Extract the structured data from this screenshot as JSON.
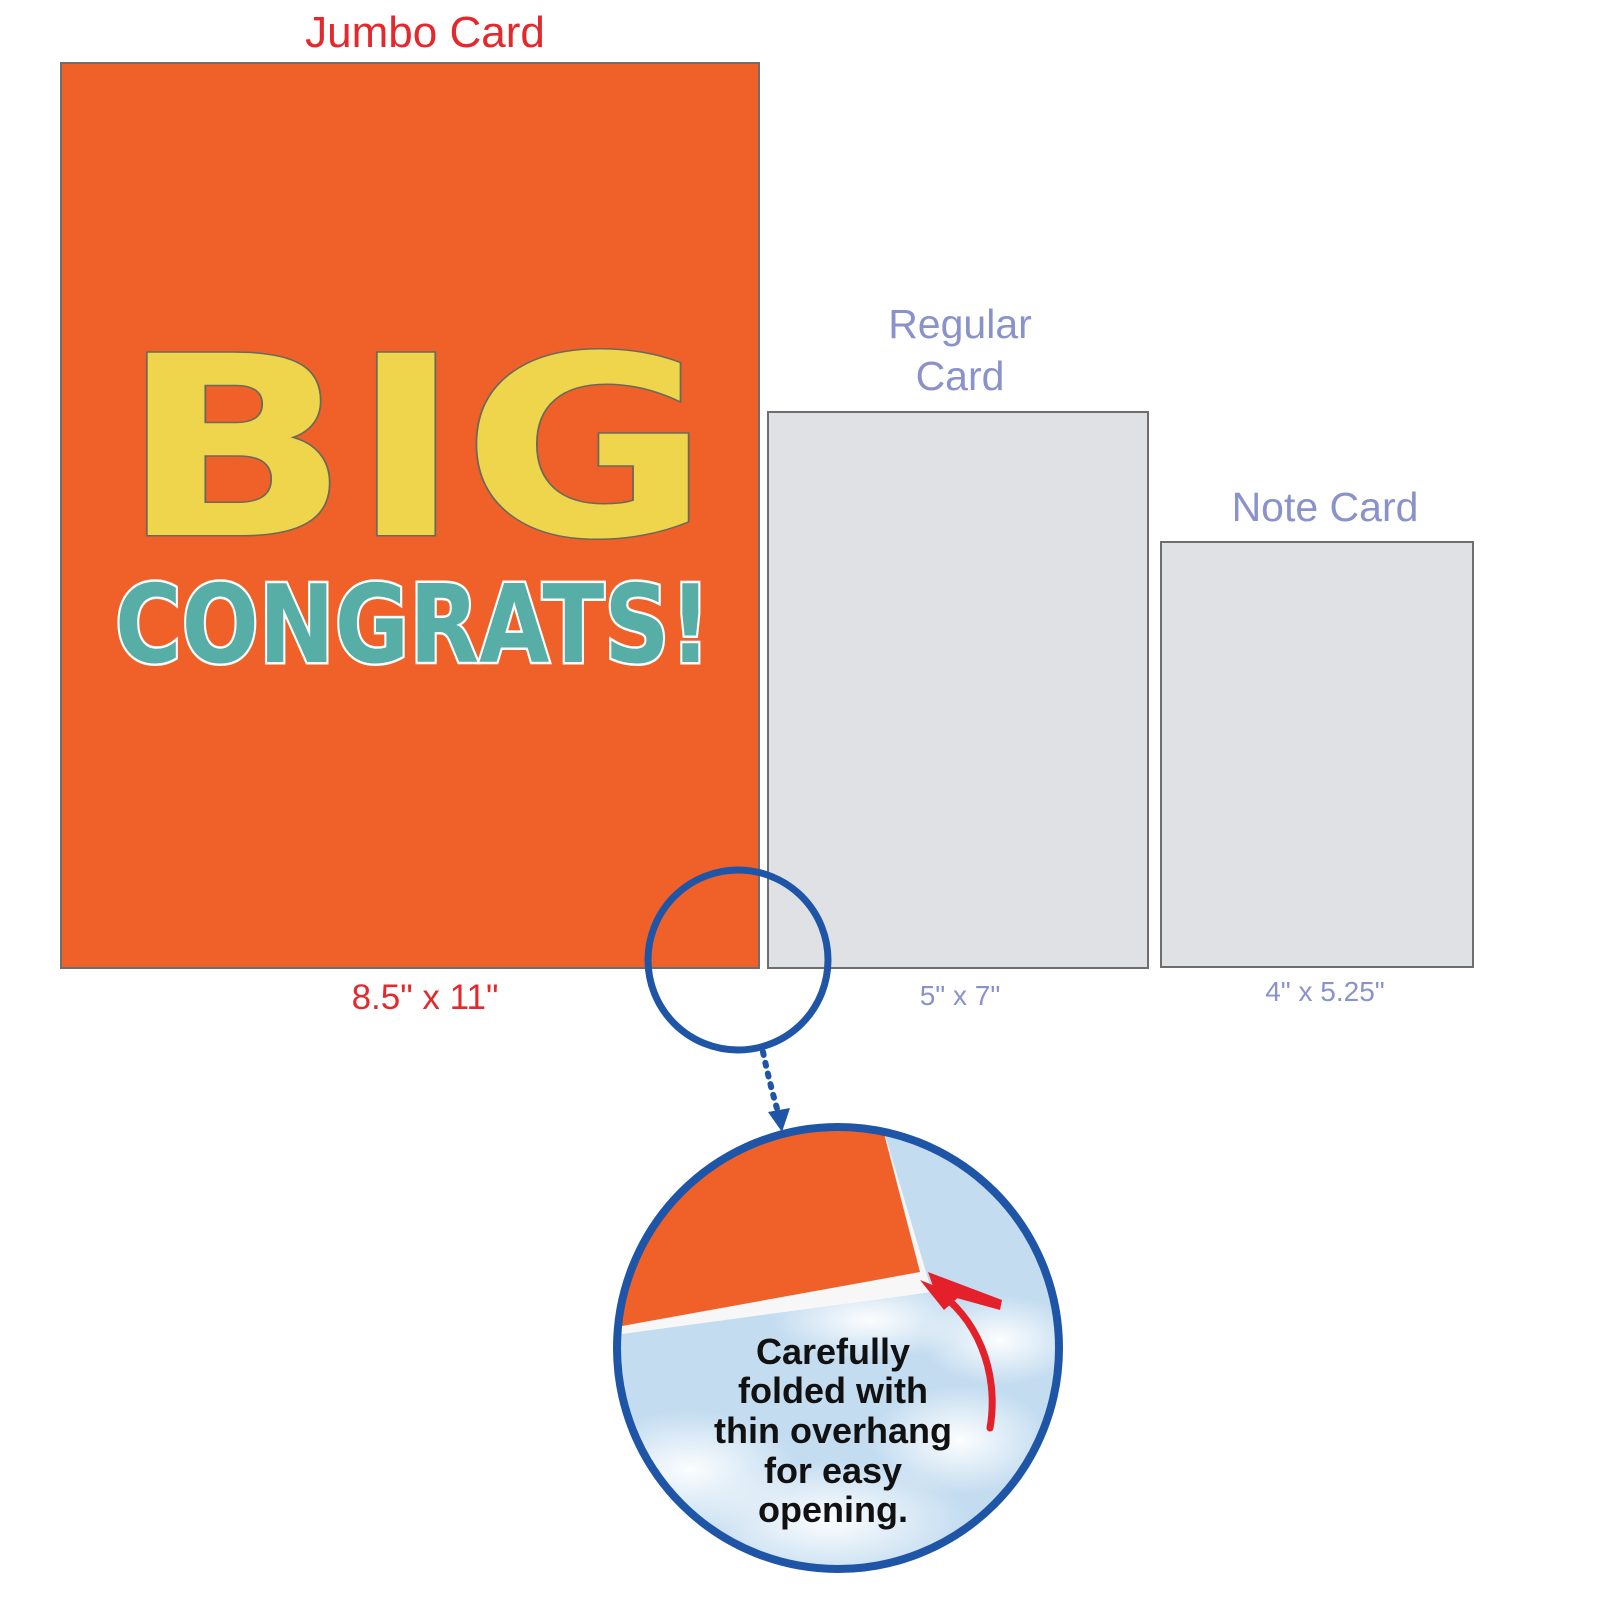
{
  "jumbo": {
    "title": "Jumbo Card",
    "size": "8.5\" x 11\"",
    "big_text": "BIG",
    "congrats_text": "CONGRATS!"
  },
  "regular": {
    "title_line1": "Regular",
    "title_line2": "Card",
    "size": "5\" x 7\""
  },
  "note": {
    "title": "Note Card",
    "size": "4\" x 5.25\""
  },
  "callout": {
    "line1": "Carefully",
    "line2": "folded with",
    "line3": "thin overhang",
    "line4": "for easy",
    "line5": "opening."
  },
  "colors": {
    "card_orange": "#f0612a",
    "big_yellow": "#efd54c",
    "congrats_teal": "#56aea6",
    "jumbo_label_red": "#e4282c",
    "label_lavender": "#8a92cc",
    "callout_blue": "#1f55a6",
    "arrow_red": "#e4202a",
    "sky_blue": "#c3dcf0"
  },
  "icons": {
    "callout_arrow": "curved-arrow-icon",
    "pointer": "dotted-arrow-icon"
  }
}
